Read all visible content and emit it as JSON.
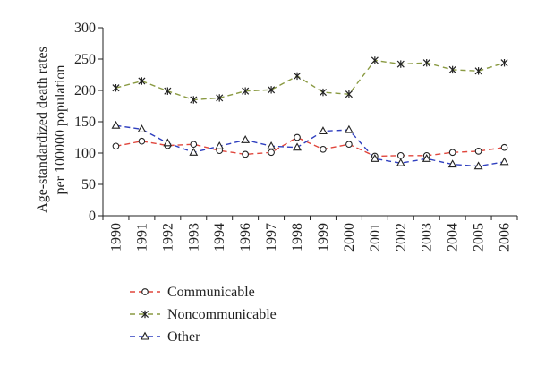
{
  "chart_data": {
    "type": "line",
    "categories": [
      "1990",
      "1991",
      "1992",
      "1993",
      "1994",
      "1996",
      "1997",
      "1998",
      "1999",
      "2000",
      "2001",
      "2002",
      "2003",
      "2004",
      "2005",
      "2006"
    ],
    "ylabel_lines": [
      "Age-standardized death rates",
      "per 100000 population"
    ],
    "ylim": [
      0,
      300
    ],
    "yticks": [
      0,
      50,
      100,
      150,
      200,
      250,
      300
    ],
    "grid": false,
    "legend_position": "bottom-left",
    "series": [
      {
        "name": "Communicable",
        "color": "#e0463c",
        "marker": "circle",
        "values": [
          111,
          119,
          112,
          114,
          104,
          98,
          101,
          125,
          106,
          114,
          95,
          96,
          96,
          101,
          103,
          109
        ]
      },
      {
        "name": "Noncommunicable",
        "color": "#8a9a42",
        "marker": "x-star",
        "values": [
          204,
          215,
          199,
          185,
          188,
          199,
          201,
          223,
          197,
          194,
          248,
          242,
          244,
          233,
          231,
          244
        ]
      },
      {
        "name": "Other",
        "color": "#2f3fbf",
        "marker": "triangle",
        "values": [
          144,
          138,
          116,
          101,
          111,
          121,
          111,
          109,
          135,
          137,
          91,
          84,
          91,
          82,
          79,
          86
        ]
      }
    ]
  }
}
